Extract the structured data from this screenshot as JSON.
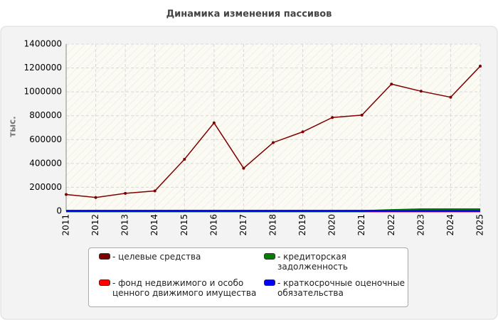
{
  "chart_data": {
    "type": "line",
    "title": "Динамика изменения пассивов",
    "y_label": "тыс.",
    "categories": [
      "2011",
      "2012",
      "2013",
      "2014",
      "2015",
      "2016",
      "2017",
      "2018",
      "2019",
      "2020",
      "2021",
      "2022",
      "2023",
      "2024",
      "2025"
    ],
    "series": [
      {
        "name": "- целевые средства",
        "color": "#800000",
        "values": [
          140000,
          115000,
          150000,
          170000,
          435000,
          740000,
          360000,
          575000,
          665000,
          785000,
          805000,
          1065000,
          1005000,
          955000,
          1215000
        ]
      },
      {
        "name": "- фонд недвижимого и особо ценного движимого имущества",
        "color": "#ff0000",
        "values": [
          0,
          0,
          0,
          0,
          0,
          0,
          0,
          0,
          0,
          0,
          0,
          0,
          0,
          0,
          0
        ]
      },
      {
        "name": "- кредиторская задолженность",
        "color": "#008000",
        "values": [
          0,
          0,
          0,
          0,
          0,
          0,
          0,
          0,
          0,
          0,
          0,
          8000,
          15000,
          15000,
          15000
        ]
      },
      {
        "name": "- краткосрочные оценочные обязательства",
        "color": "#0000ff",
        "values": [
          2000,
          2000,
          2000,
          2000,
          2000,
          2000,
          2000,
          2000,
          2000,
          2000,
          2000,
          2000,
          2000,
          2000,
          2000
        ]
      }
    ],
    "ylim": [
      0,
      1400000
    ],
    "yticks": [
      0,
      200000,
      400000,
      600000,
      800000,
      1000000,
      1200000,
      1400000
    ],
    "grid": true
  }
}
